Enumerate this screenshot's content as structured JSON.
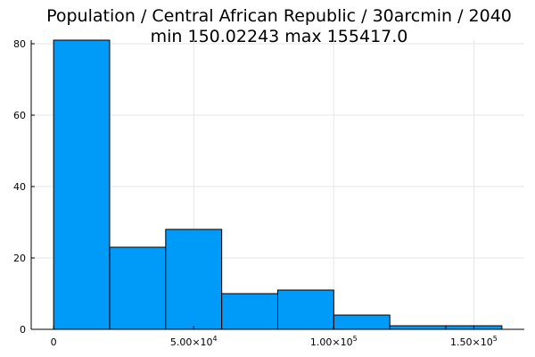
{
  "chart_data": {
    "type": "bar",
    "title": "Population / Central African Republic / 30arcmin / 2040",
    "subtitle": "min 150.02243  max 155417.0",
    "bin_edges": [
      0,
      20000,
      40000,
      60000,
      80000,
      100000,
      120000,
      140000,
      160000
    ],
    "values": [
      81,
      23,
      28,
      10,
      11,
      4,
      1,
      1
    ],
    "xlim": [
      -8000,
      168000
    ],
    "ylim": [
      0,
      81
    ],
    "xticks": [
      0,
      50000,
      100000,
      150000
    ],
    "xtick_labels": [
      {
        "mant": "0",
        "exp": ""
      },
      {
        "mant": "5.00×10",
        "exp": "4"
      },
      {
        "mant": "1.00×10",
        "exp": "5"
      },
      {
        "mant": "1.50×10",
        "exp": "5"
      }
    ],
    "yticks": [
      0,
      20,
      40,
      60,
      80
    ],
    "ytick_labels": [
      "0",
      "20",
      "40",
      "60",
      "80"
    ],
    "grid": true,
    "bar_color": "#009AF9"
  }
}
